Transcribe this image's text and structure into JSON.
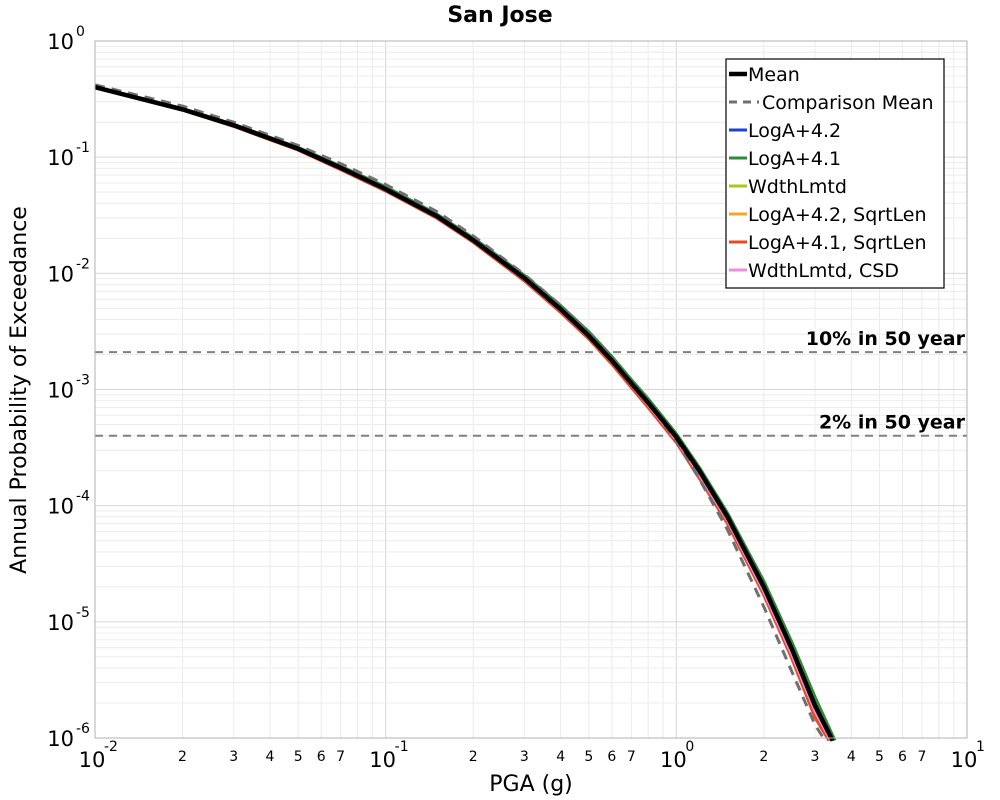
{
  "chart_data": {
    "type": "line",
    "title": "San Jose",
    "xlabel": "PGA (g)",
    "ylabel": "Annual Probability of Exceedance",
    "xscale": "log",
    "yscale": "log",
    "xlim": [
      0.01,
      10
    ],
    "ylim": [
      1e-06,
      1
    ],
    "grid": true,
    "legend_position": "top-right",
    "x_major_ticks": [
      {
        "value": 0.01,
        "base": "10",
        "exp": "-2"
      },
      {
        "value": 0.1,
        "base": "10",
        "exp": "-1"
      },
      {
        "value": 1,
        "base": "10",
        "exp": "0"
      },
      {
        "value": 10,
        "base": "10",
        "exp": "1"
      }
    ],
    "x_minor_tick_labels": [
      "2",
      "3",
      "4",
      "5",
      "6",
      "7"
    ],
    "y_major_ticks": [
      {
        "value": 1,
        "base": "10",
        "exp": "0"
      },
      {
        "value": 0.1,
        "base": "10",
        "exp": "-1"
      },
      {
        "value": 0.01,
        "base": "10",
        "exp": "-2"
      },
      {
        "value": 0.001,
        "base": "10",
        "exp": "-3"
      },
      {
        "value": 0.0001,
        "base": "10",
        "exp": "-4"
      },
      {
        "value": 1e-05,
        "base": "10",
        "exp": "-5"
      },
      {
        "value": 1e-06,
        "base": "10",
        "exp": "-6"
      }
    ],
    "reference_lines": [
      {
        "label": "10% in 50 year",
        "y": 0.0021
      },
      {
        "label": "2% in 50 year",
        "y": 0.0004
      }
    ],
    "series": [
      {
        "name": "LogA+4.1",
        "color": "#2e8b3a",
        "width": 4,
        "dash": "",
        "x": [
          0.01,
          0.02,
          0.03,
          0.05,
          0.07,
          0.1,
          0.15,
          0.2,
          0.3,
          0.4,
          0.5,
          0.6,
          0.7,
          0.8,
          1.0,
          1.2,
          1.5,
          2.0,
          2.5,
          3.0,
          3.5
        ],
        "y": [
          0.4,
          0.26,
          0.19,
          0.12,
          0.083,
          0.055,
          0.032,
          0.02,
          0.0095,
          0.0052,
          0.0031,
          0.0019,
          0.0012,
          0.00082,
          0.00041,
          0.00021,
          8.5e-05,
          2.2e-05,
          6.5e-06,
          2.2e-06,
          9.5e-07
        ]
      },
      {
        "name": "LogA+4.2",
        "color": "#1f3fd6",
        "width": 3,
        "dash": "",
        "x": [
          0.01,
          0.02,
          0.03,
          0.05,
          0.07,
          0.1,
          0.15,
          0.2,
          0.3,
          0.4,
          0.5,
          0.6,
          0.7,
          0.8,
          1.0,
          1.2,
          1.5,
          2.0,
          2.5,
          3.0,
          3.4
        ],
        "y": [
          0.4,
          0.258,
          0.188,
          0.118,
          0.081,
          0.053,
          0.031,
          0.0193,
          0.0091,
          0.0049,
          0.0029,
          0.00178,
          0.00112,
          0.00076,
          0.00038,
          0.00019,
          7.8e-05,
          1.9e-05,
          5.5e-06,
          1.8e-06,
          9.5e-07
        ]
      },
      {
        "name": "WdthLmtd",
        "color": "#a8c81e",
        "width": 3,
        "dash": "",
        "x": [
          0.01,
          0.02,
          0.03,
          0.05,
          0.07,
          0.1,
          0.15,
          0.2,
          0.3,
          0.4,
          0.5,
          0.6,
          0.7,
          0.8,
          1.0,
          1.2,
          1.5,
          2.0,
          2.5,
          3.0,
          3.4
        ],
        "y": [
          0.4,
          0.258,
          0.188,
          0.118,
          0.081,
          0.053,
          0.031,
          0.0192,
          0.009,
          0.0049,
          0.0029,
          0.00178,
          0.00112,
          0.00076,
          0.00038,
          0.00019,
          7.8e-05,
          1.9e-05,
          5.5e-06,
          1.8e-06,
          9.5e-07
        ]
      },
      {
        "name": "LogA+4.2, SqrtLen",
        "color": "#f5a623",
        "width": 3,
        "dash": "",
        "x": [
          0.01,
          0.02,
          0.03,
          0.05,
          0.07,
          0.1,
          0.15,
          0.2,
          0.3,
          0.4,
          0.5,
          0.6,
          0.7,
          0.8,
          1.0,
          1.2,
          1.5,
          2.0,
          2.5,
          3.0,
          3.35
        ],
        "y": [
          0.398,
          0.255,
          0.185,
          0.116,
          0.079,
          0.052,
          0.0302,
          0.0188,
          0.0088,
          0.0047,
          0.0028,
          0.0017,
          0.00107,
          0.00072,
          0.00036,
          0.000178,
          7.2e-05,
          1.75e-05,
          5e-06,
          1.6e-06,
          9.5e-07
        ]
      },
      {
        "name": "LogA+4.1, SqrtLen",
        "color": "#e84a1f",
        "width": 3,
        "dash": "",
        "x": [
          0.01,
          0.02,
          0.03,
          0.05,
          0.07,
          0.1,
          0.15,
          0.2,
          0.3,
          0.4,
          0.5,
          0.6,
          0.7,
          0.8,
          1.0,
          1.2,
          1.5,
          2.0,
          2.5,
          3.0,
          3.35
        ],
        "y": [
          0.397,
          0.254,
          0.184,
          0.115,
          0.078,
          0.051,
          0.0298,
          0.0185,
          0.0086,
          0.0046,
          0.00272,
          0.00165,
          0.00104,
          0.0007,
          0.00035,
          0.000172,
          7e-05,
          1.7e-05,
          4.8e-06,
          1.5e-06,
          9.5e-07
        ]
      },
      {
        "name": "WdthLmtd, CSD",
        "color": "#f08ce0",
        "width": 3,
        "dash": "",
        "x": [
          0.01,
          0.02,
          0.03,
          0.05,
          0.07,
          0.1,
          0.15,
          0.2,
          0.3,
          0.4,
          0.5,
          0.6,
          0.7,
          0.8,
          1.0,
          1.2,
          1.5,
          2.0,
          2.5,
          3.0,
          3.4
        ],
        "y": [
          0.399,
          0.256,
          0.186,
          0.117,
          0.08,
          0.052,
          0.0305,
          0.019,
          0.0089,
          0.0048,
          0.00285,
          0.00174,
          0.0011,
          0.00074,
          0.00037,
          0.000185,
          7.5e-05,
          1.82e-05,
          5.2e-06,
          1.7e-06,
          9.5e-07
        ]
      },
      {
        "name": "Comparison Mean",
        "color": "#707070",
        "width": 3,
        "dash": "10,7",
        "x": [
          0.01,
          0.02,
          0.03,
          0.05,
          0.07,
          0.1,
          0.15,
          0.2,
          0.3,
          0.4,
          0.5,
          0.6,
          0.7,
          0.8,
          1.0,
          1.2,
          1.5,
          2.0,
          2.5,
          3.0,
          3.25
        ],
        "y": [
          0.42,
          0.275,
          0.2,
          0.126,
          0.088,
          0.058,
          0.034,
          0.021,
          0.0098,
          0.0053,
          0.0031,
          0.0019,
          0.00117,
          0.00078,
          0.00036,
          0.00017,
          6.2e-05,
          1.35e-05,
          3.7e-06,
          1.3e-06,
          9.5e-07
        ]
      },
      {
        "name": "Mean",
        "color": "#000000",
        "width": 4.5,
        "dash": "",
        "x": [
          0.01,
          0.02,
          0.03,
          0.05,
          0.07,
          0.1,
          0.15,
          0.2,
          0.3,
          0.4,
          0.5,
          0.6,
          0.7,
          0.8,
          1.0,
          1.2,
          1.5,
          2.0,
          2.5,
          3.0,
          3.45
        ],
        "y": [
          0.4,
          0.258,
          0.188,
          0.118,
          0.081,
          0.053,
          0.031,
          0.0193,
          0.0091,
          0.0049,
          0.0029,
          0.00178,
          0.00113,
          0.00077,
          0.00039,
          0.0002,
          8e-05,
          2e-05,
          5.8e-06,
          1.9e-06,
          9.5e-07
        ]
      }
    ],
    "legend": [
      {
        "label": "Mean",
        "color": "#000000",
        "width": 4.5,
        "dash": ""
      },
      {
        "label": "Comparison Mean",
        "color": "#707070",
        "width": 3,
        "dash": "10,7"
      },
      {
        "label": "LogA+4.2",
        "color": "#1f3fd6",
        "width": 3,
        "dash": ""
      },
      {
        "label": "LogA+4.1",
        "color": "#2e8b3a",
        "width": 3,
        "dash": ""
      },
      {
        "label": "WdthLmtd",
        "color": "#a8c81e",
        "width": 3,
        "dash": ""
      },
      {
        "label": "LogA+4.2, SqrtLen",
        "color": "#f5a623",
        "width": 3,
        "dash": ""
      },
      {
        "label": "LogA+4.1, SqrtLen",
        "color": "#e84a1f",
        "width": 3,
        "dash": ""
      },
      {
        "label": "WdthLmtd, CSD",
        "color": "#f08ce0",
        "width": 3,
        "dash": ""
      }
    ]
  }
}
